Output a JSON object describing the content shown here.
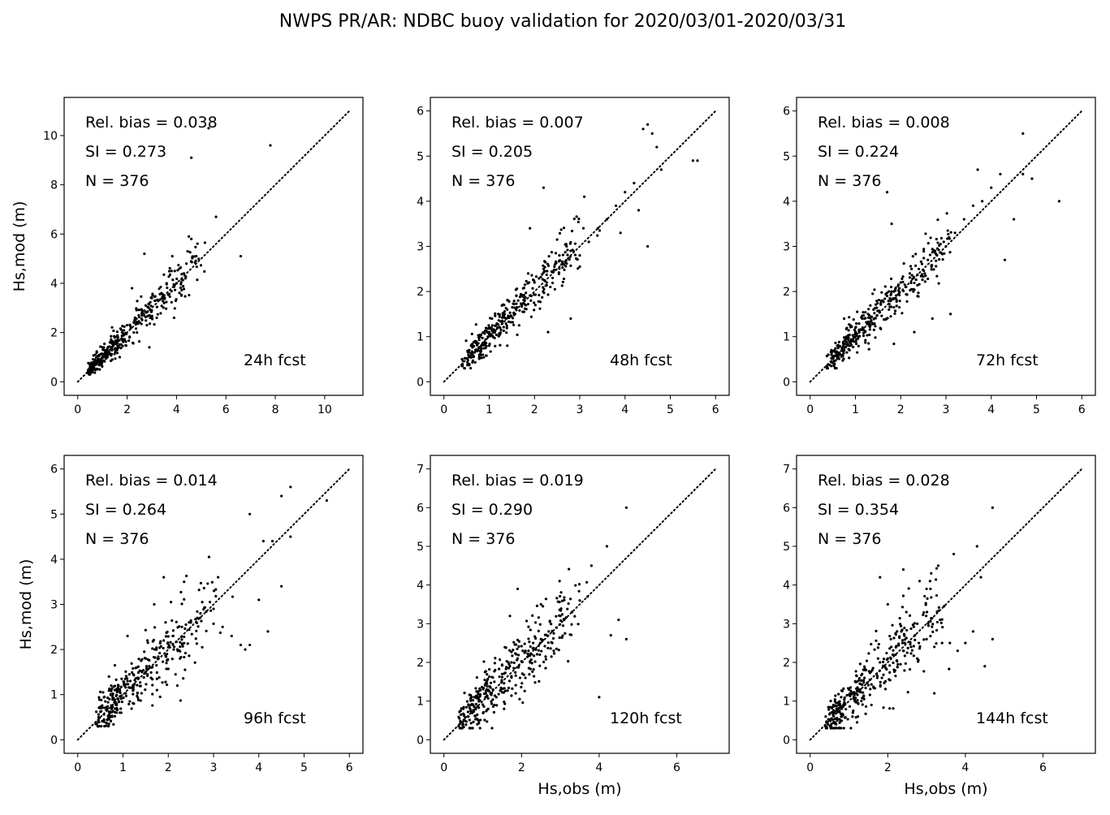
{
  "figure": {
    "title": "NWPS PR/AR: NDBC buoy validation for 2020/03/01-2020/03/31"
  },
  "chart_data": [
    {
      "type": "scatter",
      "forecast_label": "24h fcst",
      "stats": [
        "Rel. bias =  0.038",
        "SI =  0.273",
        "N = 376"
      ],
      "xlabel": "",
      "ylabel": "Hs,mod (m)",
      "xlim": [
        -0.55,
        11.55
      ],
      "ylim": [
        -0.55,
        11.55
      ],
      "xticks": [
        0,
        2,
        4,
        6,
        8,
        10
      ],
      "yticks": [
        0,
        2,
        4,
        6,
        8,
        10
      ],
      "line_max": 11,
      "n_points": 376,
      "scatter": 0.22,
      "points": [
        [
          0.5,
          0.6
        ],
        [
          0.7,
          0.9
        ],
        [
          0.9,
          1.1
        ],
        [
          1.0,
          1.4
        ],
        [
          1.2,
          1.2
        ],
        [
          1.3,
          1.6
        ],
        [
          1.5,
          1.8
        ],
        [
          1.6,
          1.3
        ],
        [
          1.8,
          2.0
        ],
        [
          1.9,
          1.7
        ],
        [
          2.0,
          2.3
        ],
        [
          2.1,
          1.8
        ],
        [
          2.3,
          2.5
        ],
        [
          2.4,
          2.0
        ],
        [
          2.6,
          2.7
        ],
        [
          2.8,
          2.3
        ],
        [
          3.0,
          2.9
        ],
        [
          3.2,
          2.6
        ],
        [
          3.5,
          3.2
        ],
        [
          3.6,
          4.0
        ],
        [
          3.8,
          4.5
        ],
        [
          4.0,
          4.0
        ],
        [
          4.2,
          3.5
        ],
        [
          4.4,
          4.8
        ],
        [
          4.5,
          5.9
        ],
        [
          4.6,
          5.8
        ],
        [
          4.8,
          5.1
        ],
        [
          2.7,
          5.2
        ],
        [
          2.2,
          3.8
        ],
        [
          5.3,
          10.3
        ],
        [
          4.6,
          9.1
        ],
        [
          7.8,
          9.6
        ],
        [
          5.6,
          6.7
        ],
        [
          6.6,
          5.1
        ],
        [
          1.4,
          0.9
        ],
        [
          1.7,
          1.0
        ],
        [
          2.9,
          1.4
        ],
        [
          3.9,
          2.6
        ]
      ]
    },
    {
      "type": "scatter",
      "forecast_label": "48h fcst",
      "stats": [
        "Rel. bias =  0.007",
        "SI =  0.205",
        "N = 376"
      ],
      "xlabel": "",
      "ylabel": "",
      "xlim": [
        -0.3,
        6.3
      ],
      "ylim": [
        -0.3,
        6.3
      ],
      "xticks": [
        0,
        1,
        2,
        3,
        4,
        5,
        6
      ],
      "yticks": [
        0,
        1,
        2,
        3,
        4,
        5,
        6
      ],
      "line_max": 6,
      "n_points": 376,
      "scatter": 0.2,
      "points": [
        [
          0.4,
          0.5
        ],
        [
          0.6,
          0.8
        ],
        [
          0.8,
          1.0
        ],
        [
          1.0,
          1.2
        ],
        [
          1.2,
          1.5
        ],
        [
          1.4,
          1.6
        ],
        [
          1.6,
          1.9
        ],
        [
          1.8,
          1.7
        ],
        [
          2.0,
          2.2
        ],
        [
          2.2,
          2.5
        ],
        [
          2.4,
          2.3
        ],
        [
          2.6,
          2.6
        ],
        [
          2.8,
          2.9
        ],
        [
          3.0,
          2.8
        ],
        [
          3.2,
          3.1
        ],
        [
          3.4,
          3.4
        ],
        [
          3.6,
          3.6
        ],
        [
          3.8,
          3.9
        ],
        [
          4.0,
          4.2
        ],
        [
          4.2,
          4.4
        ],
        [
          4.3,
          3.8
        ],
        [
          4.5,
          3.0
        ],
        [
          4.4,
          5.6
        ],
        [
          4.5,
          5.7
        ],
        [
          4.6,
          5.5
        ],
        [
          4.7,
          5.2
        ],
        [
          4.8,
          4.7
        ],
        [
          5.5,
          4.9
        ],
        [
          5.6,
          4.9
        ],
        [
          2.2,
          4.3
        ],
        [
          2.3,
          1.1
        ],
        [
          2.8,
          1.4
        ],
        [
          3.1,
          4.1
        ],
        [
          1.9,
          3.4
        ],
        [
          1.4,
          0.8
        ],
        [
          3.9,
          3.3
        ]
      ]
    },
    {
      "type": "scatter",
      "forecast_label": "72h fcst",
      "stats": [
        "Rel. bias =  0.008",
        "SI =  0.224",
        "N = 376"
      ],
      "xlabel": "",
      "ylabel": "",
      "xlim": [
        -0.3,
        6.3
      ],
      "ylim": [
        -0.3,
        6.3
      ],
      "xticks": [
        0,
        1,
        2,
        3,
        4,
        5,
        6
      ],
      "yticks": [
        0,
        1,
        2,
        3,
        4,
        5,
        6
      ],
      "line_max": 6,
      "n_points": 376,
      "scatter": 0.22,
      "points": [
        [
          0.4,
          0.6
        ],
        [
          0.6,
          0.8
        ],
        [
          0.8,
          1.0
        ],
        [
          1.0,
          1.2
        ],
        [
          1.2,
          1.4
        ],
        [
          1.4,
          1.6
        ],
        [
          1.6,
          1.8
        ],
        [
          1.8,
          2.0
        ],
        [
          2.0,
          2.2
        ],
        [
          2.2,
          2.4
        ],
        [
          2.4,
          2.5
        ],
        [
          2.6,
          2.7
        ],
        [
          2.8,
          2.8
        ],
        [
          3.0,
          3.0
        ],
        [
          3.2,
          3.3
        ],
        [
          3.4,
          3.6
        ],
        [
          3.6,
          3.9
        ],
        [
          3.8,
          4.0
        ],
        [
          4.0,
          4.3
        ],
        [
          4.2,
          4.6
        ],
        [
          4.3,
          2.7
        ],
        [
          4.5,
          3.6
        ],
        [
          4.7,
          5.5
        ],
        [
          4.7,
          4.6
        ],
        [
          4.9,
          4.5
        ],
        [
          5.5,
          4.0
        ],
        [
          3.7,
          4.7
        ],
        [
          1.7,
          4.2
        ],
        [
          1.8,
          3.5
        ],
        [
          2.3,
          1.1
        ],
        [
          2.7,
          1.4
        ],
        [
          3.1,
          1.5
        ]
      ]
    },
    {
      "type": "scatter",
      "forecast_label": "96h fcst",
      "stats": [
        "Rel. bias =  0.014",
        "SI =  0.264",
        "N = 376"
      ],
      "xlabel": "",
      "ylabel": "Hs,mod (m)",
      "xlim": [
        -0.3,
        6.3
      ],
      "ylim": [
        -0.3,
        6.3
      ],
      "xticks": [
        0,
        1,
        2,
        3,
        4,
        5,
        6
      ],
      "yticks": [
        0,
        1,
        2,
        3,
        4,
        5,
        6
      ],
      "line_max": 6,
      "n_points": 376,
      "scatter": 0.32,
      "points": [
        [
          0.5,
          0.7
        ],
        [
          0.7,
          0.9
        ],
        [
          0.9,
          1.2
        ],
        [
          1.1,
          1.3
        ],
        [
          1.3,
          1.6
        ],
        [
          1.5,
          1.8
        ],
        [
          1.7,
          2.0
        ],
        [
          1.9,
          2.2
        ],
        [
          2.1,
          2.3
        ],
        [
          2.3,
          2.5
        ],
        [
          2.5,
          2.6
        ],
        [
          2.7,
          2.7
        ],
        [
          3.0,
          2.9
        ],
        [
          3.2,
          2.5
        ],
        [
          3.4,
          2.3
        ],
        [
          3.6,
          2.1
        ],
        [
          3.8,
          2.1
        ],
        [
          4.0,
          3.1
        ],
        [
          4.1,
          4.4
        ],
        [
          4.3,
          4.4
        ],
        [
          4.5,
          5.4
        ],
        [
          4.7,
          5.6
        ],
        [
          4.7,
          4.5
        ],
        [
          5.5,
          5.3
        ],
        [
          3.8,
          5.0
        ],
        [
          3.7,
          2.0
        ],
        [
          4.2,
          2.4
        ],
        [
          4.5,
          3.4
        ],
        [
          1.9,
          3.6
        ],
        [
          2.2,
          1.2
        ],
        [
          1.1,
          2.3
        ],
        [
          3.1,
          3.6
        ]
      ]
    },
    {
      "type": "scatter",
      "forecast_label": "120h fcst",
      "stats": [
        "Rel. bias =  0.019",
        "SI =  0.290",
        "N = 376"
      ],
      "xlabel": "Hs,obs (m)",
      "ylabel": "",
      "xlim": [
        -0.35,
        7.35
      ],
      "ylim": [
        -0.35,
        7.35
      ],
      "xticks": [
        0,
        2,
        4,
        6
      ],
      "yticks": [
        0,
        1,
        2,
        3,
        4,
        5,
        6,
        7
      ],
      "line_max": 7,
      "n_points": 376,
      "scatter": 0.34,
      "points": [
        [
          0.5,
          0.8
        ],
        [
          0.7,
          0.9
        ],
        [
          0.9,
          1.1
        ],
        [
          1.1,
          1.3
        ],
        [
          1.3,
          1.5
        ],
        [
          1.5,
          1.7
        ],
        [
          1.7,
          1.9
        ],
        [
          1.9,
          2.1
        ],
        [
          2.1,
          2.3
        ],
        [
          2.3,
          2.5
        ],
        [
          2.5,
          2.6
        ],
        [
          2.7,
          2.8
        ],
        [
          2.9,
          2.9
        ],
        [
          3.1,
          3.1
        ],
        [
          3.3,
          3.3
        ],
        [
          3.5,
          3.6
        ],
        [
          3.7,
          3.7
        ],
        [
          3.8,
          4.5
        ],
        [
          4.2,
          5.0
        ],
        [
          4.7,
          6.0
        ],
        [
          4.3,
          2.7
        ],
        [
          4.5,
          3.1
        ],
        [
          4.7,
          2.6
        ],
        [
          4.0,
          1.1
        ],
        [
          1.7,
          3.2
        ],
        [
          1.9,
          3.9
        ],
        [
          2.5,
          3.5
        ],
        [
          1.3,
          0.9
        ]
      ]
    },
    {
      "type": "scatter",
      "forecast_label": "144h fcst",
      "stats": [
        "Rel. bias =  0.028",
        "SI =  0.354",
        "N = 376"
      ],
      "xlabel": "Hs,obs (m)",
      "ylabel": "",
      "xlim": [
        -0.35,
        7.35
      ],
      "ylim": [
        -0.35,
        7.35
      ],
      "xticks": [
        0,
        2,
        4,
        6
      ],
      "yticks": [
        0,
        1,
        2,
        3,
        4,
        5,
        6,
        7
      ],
      "line_max": 7,
      "n_points": 376,
      "scatter": 0.36,
      "points": [
        [
          0.4,
          0.6
        ],
        [
          0.6,
          0.9
        ],
        [
          0.8,
          1.1
        ],
        [
          1.0,
          1.3
        ],
        [
          1.2,
          1.5
        ],
        [
          1.4,
          1.6
        ],
        [
          1.6,
          1.8
        ],
        [
          1.8,
          2.0
        ],
        [
          2.0,
          2.1
        ],
        [
          2.2,
          2.2
        ],
        [
          2.4,
          2.3
        ],
        [
          2.6,
          2.4
        ],
        [
          2.8,
          2.5
        ],
        [
          3.0,
          2.6
        ],
        [
          3.2,
          2.4
        ],
        [
          3.4,
          2.5
        ],
        [
          3.6,
          2.5
        ],
        [
          3.8,
          2.3
        ],
        [
          4.0,
          2.5
        ],
        [
          4.2,
          2.8
        ],
        [
          4.5,
          1.9
        ],
        [
          4.7,
          2.6
        ],
        [
          1.8,
          4.2
        ],
        [
          2.4,
          4.4
        ],
        [
          3.3,
          4.5
        ],
        [
          3.7,
          4.8
        ],
        [
          4.3,
          5.0
        ],
        [
          4.4,
          4.2
        ],
        [
          4.7,
          6.0
        ],
        [
          3.2,
          1.2
        ],
        [
          2.0,
          3.5
        ],
        [
          3.0,
          3.9
        ]
      ]
    }
  ]
}
